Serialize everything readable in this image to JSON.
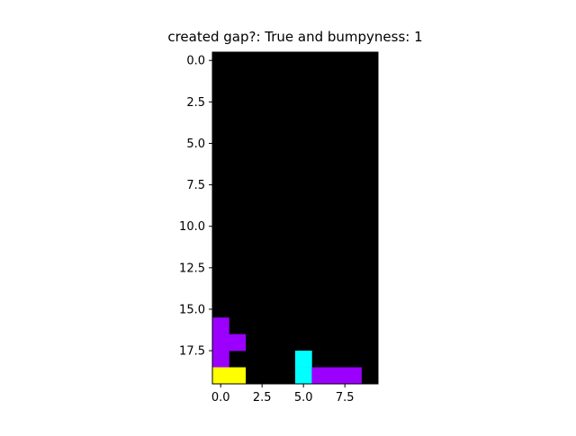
{
  "chart_data": {
    "type": "heatmap",
    "title": "created gap?: True and bumpyness: 1",
    "xlabel": "",
    "ylabel": "",
    "grid": false,
    "x_ticks": [
      0.0,
      2.5,
      5.0,
      7.5
    ],
    "x_tick_labels": [
      "0.0",
      "2.5",
      "5.0",
      "7.5"
    ],
    "y_ticks": [
      0.0,
      2.5,
      5.0,
      7.5,
      10.0,
      12.5,
      15.0,
      17.5
    ],
    "y_tick_labels": [
      "0.0",
      "2.5",
      "5.0",
      "7.5",
      "10.0",
      "12.5",
      "15.0",
      "17.5"
    ],
    "xlim": [
      -0.5,
      9.5
    ],
    "ylim": [
      19.5,
      -0.5
    ],
    "columns": 10,
    "rows": 20,
    "background_color": "#000000",
    "cells": [
      {
        "row": 16,
        "col": 0,
        "color": "#9b00ff"
      },
      {
        "row": 17,
        "col": 0,
        "color": "#9b00ff"
      },
      {
        "row": 17,
        "col": 1,
        "color": "#9b00ff"
      },
      {
        "row": 18,
        "col": 0,
        "color": "#9b00ff"
      },
      {
        "row": 19,
        "col": 0,
        "color": "#ffff00"
      },
      {
        "row": 19,
        "col": 1,
        "color": "#ffff00"
      },
      {
        "row": 18,
        "col": 5,
        "color": "#00ffff"
      },
      {
        "row": 19,
        "col": 5,
        "color": "#00ffff"
      },
      {
        "row": 19,
        "col": 6,
        "color": "#9b00ff"
      },
      {
        "row": 19,
        "col": 7,
        "color": "#9b00ff"
      },
      {
        "row": 19,
        "col": 8,
        "color": "#9b00ff"
      }
    ]
  }
}
